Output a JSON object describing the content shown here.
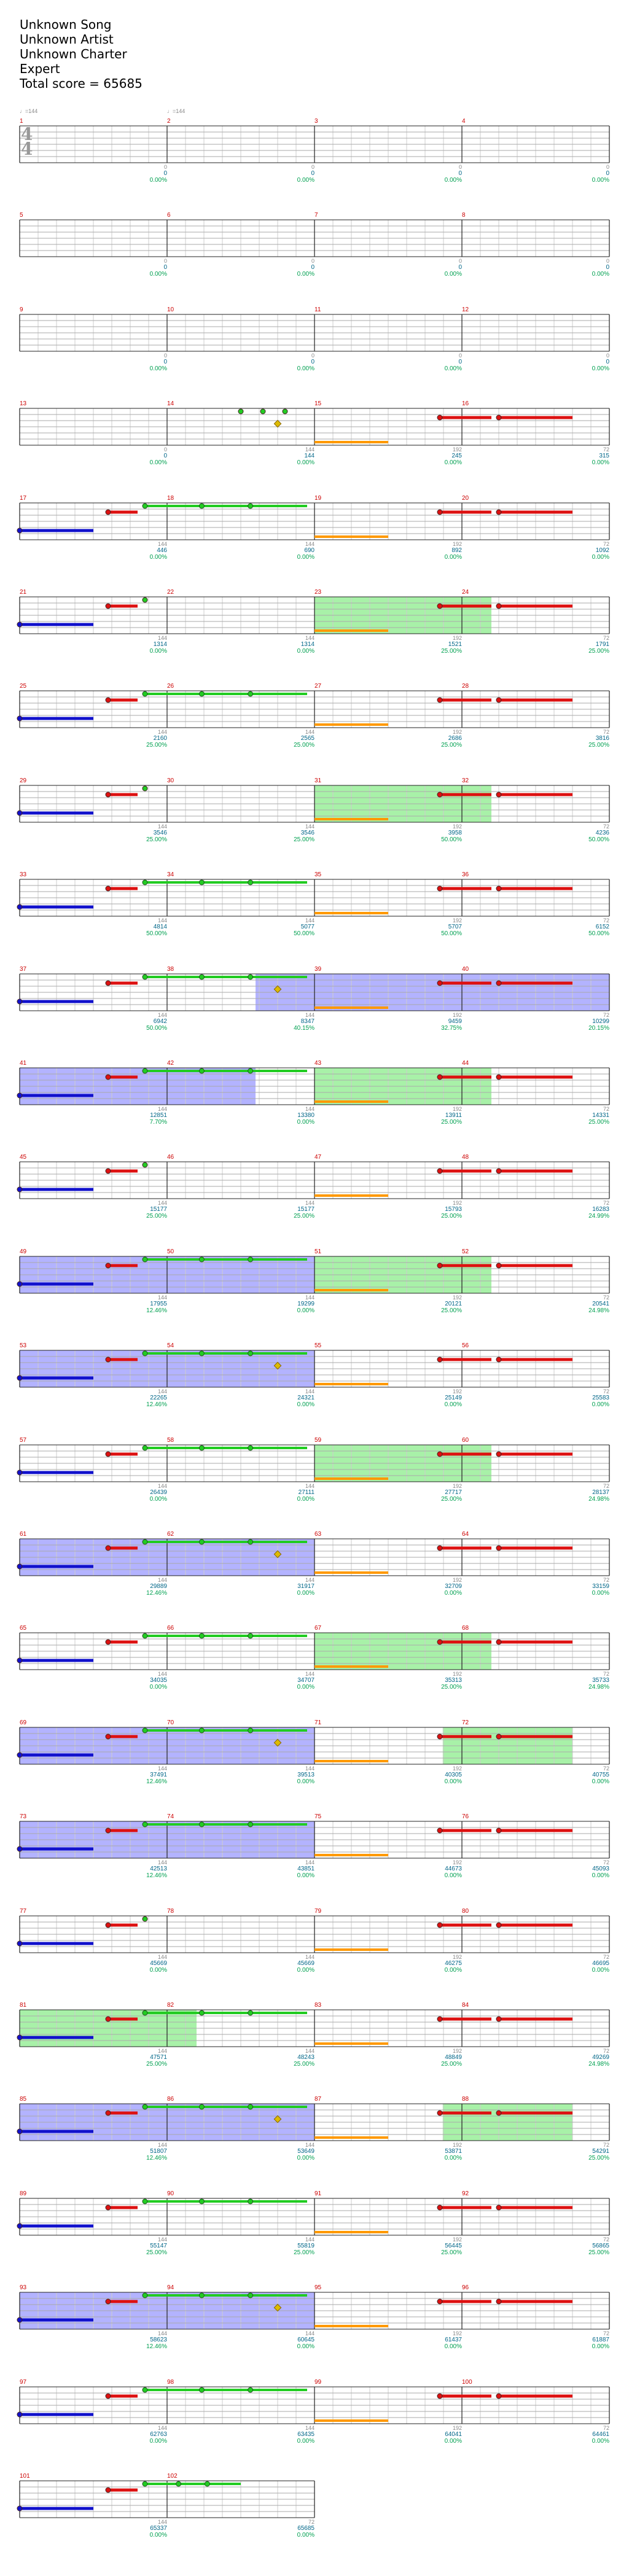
{
  "header": {
    "song": "Unknown Song",
    "artist": "Unknown Artist",
    "charter": "Unknown Charter",
    "difficulty": "Expert",
    "total_score": "Total score = 65685"
  },
  "tempo_markers": [
    "♩=144",
    "♩=144"
  ],
  "time_signature": {
    "top": "4",
    "bottom": "4"
  },
  "colors": {
    "green": "#22cc22",
    "red": "#dd1111",
    "yellow": "#ddbb00",
    "blue": "#1111cc",
    "orange": "#ff9900",
    "star_power": "#9999ff",
    "solo": "#99ee99"
  },
  "staves": [
    {
      "measures": [
        "1",
        "2",
        "3",
        "4"
      ],
      "ticks": [
        "0",
        "0",
        "0",
        "0"
      ],
      "scores": [
        "0",
        "0",
        "0",
        "0"
      ],
      "pcts": [
        "0.00%",
        "0.00%",
        "0.00%",
        "0.00%"
      ],
      "sp": [],
      "solo": [],
      "notes": []
    },
    {
      "measures": [
        "5",
        "6",
        "7",
        "8"
      ],
      "ticks": [
        "0",
        "0",
        "0",
        "0"
      ],
      "scores": [
        "0",
        "0",
        "0",
        "0"
      ],
      "pcts": [
        "0.00%",
        "0.00%",
        "0.00%",
        "0.00%"
      ],
      "sp": [],
      "solo": [],
      "notes": []
    },
    {
      "measures": [
        "9",
        "10",
        "11",
        "12"
      ],
      "ticks": [
        "0",
        "0",
        "0",
        "0"
      ],
      "scores": [
        "0",
        "0",
        "0",
        "0"
      ],
      "pcts": [
        "0.00%",
        "0.00%",
        "0.00%",
        "0.00%"
      ],
      "sp": [],
      "solo": [],
      "notes": []
    },
    {
      "measures": [
        "13",
        "14",
        "15",
        "16"
      ],
      "ticks": [
        "0",
        "144",
        "192",
        "72"
      ],
      "scores": [
        "0",
        "144",
        "245",
        "315"
      ],
      "pcts": [
        "0.00%",
        "0.00%",
        "0.00%",
        "0.00%"
      ],
      "sp": [],
      "solo": [],
      "notes": [
        "G1.5",
        "G1.65",
        "G1.8",
        "Y1.75",
        "O2.0-2.5",
        "R2.85-3.2",
        "R3.25-3.75"
      ]
    },
    {
      "measures": [
        "17",
        "18",
        "19",
        "20"
      ],
      "ticks": [
        "144",
        "144",
        "192",
        "72"
      ],
      "scores": [
        "446",
        "690",
        "892",
        "1092"
      ],
      "pcts": [
        "0.00%",
        "0.00%",
        "0.00%",
        "0.00%"
      ],
      "sp": [],
      "solo": [],
      "notes": [
        "B0.0-0.5",
        "R0.6-0.8",
        "G0.85-1.95",
        "O2.0-2.5",
        "R2.85-3.2",
        "R3.25-3.75"
      ]
    },
    {
      "measures": [
        "21",
        "22",
        "23",
        "24"
      ],
      "ticks": [
        "144",
        "144",
        "192",
        "72"
      ],
      "scores": [
        "1314",
        "1314",
        "1521",
        "1791"
      ],
      "pcts": [
        "0.00%",
        "0.00%",
        "25.00%",
        "25.00%"
      ],
      "sp": [],
      "solo": [
        "2.0-3.2"
      ],
      "notes": [
        "B0.0-0.5",
        "R0.6-0.8",
        "G0.85",
        "O2.0-2.5",
        "R2.85-3.2",
        "R3.25-3.75"
      ]
    },
    {
      "measures": [
        "25",
        "26",
        "27",
        "28"
      ],
      "ticks": [
        "144",
        "144",
        "192",
        "72"
      ],
      "scores": [
        "2160",
        "2565",
        "2686",
        "3816"
      ],
      "pcts": [
        "25.00%",
        "25.00%",
        "25.00%",
        "25.00%"
      ],
      "sp": [],
      "solo": [],
      "notes": [
        "B0.0-0.5",
        "R0.6-0.8",
        "G0.85-1.95",
        "O2.0-2.5",
        "R2.85-3.2",
        "R3.25-3.75"
      ]
    },
    {
      "measures": [
        "29",
        "30",
        "31",
        "32"
      ],
      "ticks": [
        "144",
        "144",
        "192",
        "72"
      ],
      "scores": [
        "3546",
        "3546",
        "3958",
        "4236"
      ],
      "pcts": [
        "25.00%",
        "25.00%",
        "50.00%",
        "50.00%"
      ],
      "sp": [],
      "solo": [
        "2.0-3.2"
      ],
      "notes": [
        "B0.0-0.5",
        "R0.6-0.8",
        "G0.85",
        "O2.0-2.5",
        "R2.85-3.2",
        "R3.25-3.75"
      ]
    },
    {
      "measures": [
        "33",
        "34",
        "35",
        "36"
      ],
      "ticks": [
        "144",
        "144",
        "192",
        "72"
      ],
      "scores": [
        "4814",
        "5077",
        "5707",
        "6152"
      ],
      "pcts": [
        "50.00%",
        "50.00%",
        "50.00%",
        "50.00%"
      ],
      "sp": [],
      "solo": [],
      "notes": [
        "B0.0-0.5",
        "R0.6-0.8",
        "G0.85-1.95",
        "O2.0-2.5",
        "R2.85-3.2",
        "R3.25-3.75"
      ]
    },
    {
      "measures": [
        "37",
        "38",
        "39",
        "40"
      ],
      "ticks": [
        "144",
        "144",
        "192",
        "72"
      ],
      "scores": [
        "6942",
        "8347",
        "9459",
        "10299"
      ],
      "pcts": [
        "50.00%",
        "40.15%",
        "32.75%",
        "20.15%"
      ],
      "sp": [
        "1.6-4.0"
      ],
      "solo": [],
      "notes": [
        "B0.0-0.5",
        "R0.6-0.8",
        "G0.85-1.95",
        "Y1.75",
        "O2.0-2.5",
        "R2.85-3.2",
        "R3.25-3.75"
      ]
    },
    {
      "measures": [
        "41",
        "42",
        "43",
        "44"
      ],
      "ticks": [
        "144",
        "144",
        "192",
        "72"
      ],
      "scores": [
        "12851",
        "13380",
        "13911",
        "14331"
      ],
      "pcts": [
        "7.70%",
        "0.00%",
        "25.00%",
        "25.00%"
      ],
      "sp": [
        "0.0-1.6"
      ],
      "solo": [
        "2.0-3.2"
      ],
      "notes": [
        "B0.0-0.5",
        "R0.6-0.8",
        "G0.85-1.95",
        "O2.0-2.5",
        "R2.85-3.2",
        "R3.25-3.75"
      ]
    },
    {
      "measures": [
        "45",
        "46",
        "47",
        "48"
      ],
      "ticks": [
        "144",
        "144",
        "192",
        "72"
      ],
      "scores": [
        "15177",
        "15177",
        "15793",
        "16283"
      ],
      "pcts": [
        "25.00%",
        "25.00%",
        "25.00%",
        "24.99%"
      ],
      "sp": [],
      "solo": [],
      "notes": [
        "B0.0-0.5",
        "R0.6-0.8",
        "G0.85",
        "O2.0-2.5",
        "R2.85-3.2",
        "R3.25-3.75"
      ]
    },
    {
      "measures": [
        "49",
        "50",
        "51",
        "52"
      ],
      "ticks": [
        "144",
        "144",
        "192",
        "72"
      ],
      "scores": [
        "17955",
        "19299",
        "20121",
        "20541"
      ],
      "pcts": [
        "12.46%",
        "0.00%",
        "25.00%",
        "24.98%"
      ],
      "sp": [
        "0.0-2.0"
      ],
      "solo": [
        "2.0-3.2"
      ],
      "notes": [
        "B0.0-0.5",
        "R0.6-0.8",
        "G0.85-1.95",
        "O2.0-2.5",
        "R2.85-3.2",
        "R3.25-3.75"
      ]
    },
    {
      "measures": [
        "53",
        "54",
        "55",
        "56"
      ],
      "ticks": [
        "144",
        "144",
        "192",
        "72"
      ],
      "scores": [
        "22265",
        "24321",
        "25149",
        "25583"
      ],
      "pcts": [
        "12.46%",
        "0.00%",
        "0.00%",
        "0.00%"
      ],
      "sp": [
        "0.0-2.0"
      ],
      "solo": [],
      "notes": [
        "B0.0-0.5",
        "R0.6-0.8",
        "G0.85-1.95",
        "Y1.75",
        "O2.0-2.5",
        "R2.85-3.2",
        "R3.25-3.75"
      ]
    },
    {
      "measures": [
        "57",
        "58",
        "59",
        "60"
      ],
      "ticks": [
        "144",
        "144",
        "192",
        "72"
      ],
      "scores": [
        "26439",
        "27111",
        "27717",
        "28137"
      ],
      "pcts": [
        "0.00%",
        "0.00%",
        "25.00%",
        "24.98%"
      ],
      "sp": [],
      "solo": [
        "2.0-3.2"
      ],
      "notes": [
        "B0.0-0.5",
        "R0.6-0.8",
        "G0.85-1.95",
        "O2.0-2.5",
        "R2.85-3.2",
        "R3.25-3.75"
      ]
    },
    {
      "measures": [
        "61",
        "62",
        "63",
        "64"
      ],
      "ticks": [
        "144",
        "144",
        "192",
        "72"
      ],
      "scores": [
        "29889",
        "31917",
        "32709",
        "33159"
      ],
      "pcts": [
        "12.46%",
        "0.00%",
        "0.00%",
        "0.00%"
      ],
      "sp": [
        "0.0-2.0"
      ],
      "solo": [],
      "notes": [
        "B0.0-0.5",
        "R0.6-0.8",
        "G0.85-1.95",
        "Y1.75",
        "O2.0-2.5",
        "R2.85-3.2",
        "R3.25-3.75"
      ]
    },
    {
      "measures": [
        "65",
        "66",
        "67",
        "68"
      ],
      "ticks": [
        "144",
        "144",
        "192",
        "72"
      ],
      "scores": [
        "34035",
        "34707",
        "35313",
        "35733"
      ],
      "pcts": [
        "0.00%",
        "0.00%",
        "25.00%",
        "24.98%"
      ],
      "sp": [],
      "solo": [
        "2.0-3.2"
      ],
      "notes": [
        "B0.0-0.5",
        "R0.6-0.8",
        "G0.85-1.95",
        "O2.0-2.5",
        "R2.85-3.2",
        "R3.25-3.75"
      ]
    },
    {
      "measures": [
        "69",
        "70",
        "71",
        "72"
      ],
      "ticks": [
        "144",
        "144",
        "192",
        "72"
      ],
      "scores": [
        "37491",
        "39513",
        "40305",
        "40755"
      ],
      "pcts": [
        "12.46%",
        "0.00%",
        "0.00%",
        "0.00%"
      ],
      "sp": [
        "0.0-2.0"
      ],
      "solo": [
        "2.87-3.75"
      ],
      "notes": [
        "B0.0-0.5",
        "R0.6-0.8",
        "G0.85-1.95",
        "Y1.75",
        "O2.0-2.5",
        "R2.85-3.2",
        "R3.25-3.75"
      ]
    },
    {
      "measures": [
        "73",
        "74",
        "75",
        "76"
      ],
      "ticks": [
        "144",
        "144",
        "192",
        "72"
      ],
      "scores": [
        "42513",
        "43851",
        "44673",
        "45093"
      ],
      "pcts": [
        "12.46%",
        "0.00%",
        "0.00%",
        "0.00%"
      ],
      "sp": [
        "0.0-2.0"
      ],
      "solo": [],
      "notes": [
        "B0.0-0.5",
        "R0.6-0.8",
        "G0.85-1.95",
        "O2.0-2.5",
        "R2.85-3.2",
        "R3.25-3.75"
      ]
    },
    {
      "measures": [
        "77",
        "78",
        "79",
        "80"
      ],
      "ticks": [
        "144",
        "144",
        "192",
        "72"
      ],
      "scores": [
        "45669",
        "45669",
        "46275",
        "46695"
      ],
      "pcts": [
        "0.00%",
        "0.00%",
        "0.00%",
        "0.00%"
      ],
      "sp": [],
      "solo": [],
      "notes": [
        "B0.0-0.5",
        "R0.6-0.8",
        "G0.85",
        "O2.0-2.5",
        "R2.85-3.2",
        "R3.25-3.75"
      ]
    },
    {
      "measures": [
        "81",
        "82",
        "83",
        "84"
      ],
      "ticks": [
        "144",
        "144",
        "192",
        "72"
      ],
      "scores": [
        "47571",
        "48243",
        "48849",
        "49269"
      ],
      "pcts": [
        "25.00%",
        "25.00%",
        "25.00%",
        "24.98%"
      ],
      "sp": [],
      "solo": [
        "0.0-1.2"
      ],
      "notes": [
        "B0.0-0.5",
        "R0.6-0.8",
        "G0.85-1.95",
        "O2.0-2.5",
        "R2.85-3.2",
        "R3.25-3.75"
      ]
    },
    {
      "measures": [
        "85",
        "86",
        "87",
        "88"
      ],
      "ticks": [
        "144",
        "144",
        "192",
        "72"
      ],
      "scores": [
        "51807",
        "53649",
        "53871",
        "54291"
      ],
      "pcts": [
        "12.46%",
        "0.00%",
        "0.00%",
        "25.00%"
      ],
      "sp": [
        "0.0-2.0"
      ],
      "solo": [
        "2.87-3.75"
      ],
      "notes": [
        "B0.0-0.5",
        "R0.6-0.8",
        "G0.85-1.95",
        "Y1.75",
        "O2.0-2.5",
        "R2.85-3.2",
        "R3.25-3.75"
      ]
    },
    {
      "measures": [
        "89",
        "90",
        "91",
        "92"
      ],
      "ticks": [
        "144",
        "144",
        "192",
        "72"
      ],
      "scores": [
        "55147",
        "55819",
        "56445",
        "56865"
      ],
      "pcts": [
        "25.00%",
        "25.00%",
        "25.00%",
        "25.00%"
      ],
      "sp": [],
      "solo": [],
      "notes": [
        "B0.0-0.5",
        "R0.6-0.8",
        "G0.85-1.95",
        "O2.0-2.5",
        "R2.85-3.2",
        "R3.25-3.75"
      ]
    },
    {
      "measures": [
        "93",
        "94",
        "95",
        "96"
      ],
      "ticks": [
        "144",
        "144",
        "192",
        "72"
      ],
      "scores": [
        "58623",
        "60645",
        "61437",
        "61887"
      ],
      "pcts": [
        "12.46%",
        "0.00%",
        "0.00%",
        "0.00%"
      ],
      "sp": [
        "0.0-2.0"
      ],
      "solo": [],
      "notes": [
        "B0.0-0.5",
        "R0.6-0.8",
        "G0.85-1.95",
        "Y1.75",
        "O2.0-2.5",
        "R2.85-3.2",
        "R3.25-3.75"
      ]
    },
    {
      "measures": [
        "97",
        "98",
        "99",
        "100"
      ],
      "ticks": [
        "144",
        "144",
        "192",
        "72"
      ],
      "scores": [
        "62763",
        "63435",
        "64041",
        "64461"
      ],
      "pcts": [
        "0.00%",
        "0.00%",
        "0.00%",
        "0.00%"
      ],
      "sp": [],
      "solo": [],
      "notes": [
        "B0.0-0.5",
        "R0.6-0.8",
        "G0.85-1.95",
        "O2.0-2.5",
        "R2.85-3.2",
        "R3.25-3.75"
      ]
    },
    {
      "measures": [
        "101",
        "102"
      ],
      "ticks": [
        "144",
        "72"
      ],
      "scores": [
        "65337",
        "65685"
      ],
      "pcts": [
        "0.00%",
        "0.00%"
      ],
      "sp": [],
      "solo": [],
      "notes": [
        "B0.0-0.5",
        "R0.6-0.8",
        "G0.85-1.5"
      ]
    }
  ]
}
